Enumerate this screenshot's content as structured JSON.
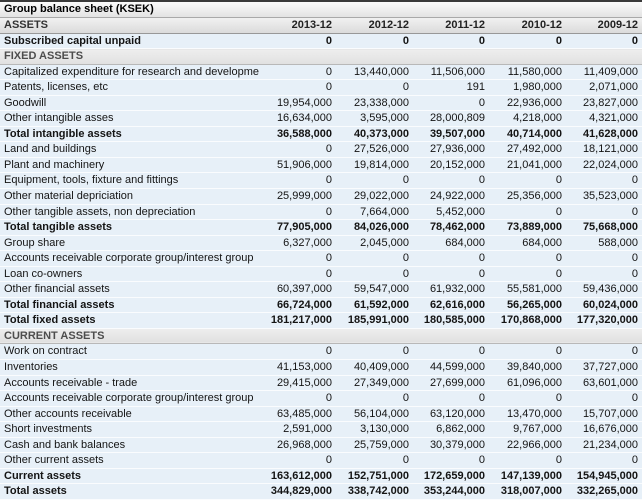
{
  "header": {
    "title": "Group balance sheet (KSEK)",
    "row_label_column": "ASSETS",
    "year_columns": [
      "2013-12",
      "2012-12",
      "2011-12",
      "2010-12",
      "2009-12"
    ]
  },
  "colors": {
    "row_background": "#e7f0f8",
    "section_background": "#e6e6e6",
    "header_background": "#ececec",
    "top_border": "#3a3a3a",
    "text": "#141414"
  },
  "rows": [
    {
      "label": "Subscribed capital unpaid",
      "style": "bold",
      "values": [
        "0",
        "0",
        "0",
        "0",
        "0"
      ]
    },
    {
      "label": "FIXED ASSETS",
      "style": "section",
      "values": []
    },
    {
      "label": "Capitalized expenditure for research and development",
      "style": "normal",
      "values": [
        "0",
        "13,440,000",
        "11,506,000",
        "11,580,000",
        "11,409,000"
      ]
    },
    {
      "label": "Patents, licenses, etc",
      "style": "normal",
      "values": [
        "0",
        "0",
        "191",
        "1,980,000",
        "2,071,000"
      ]
    },
    {
      "label": "Goodwill",
      "style": "normal",
      "values": [
        "19,954,000",
        "23,338,000",
        "0",
        "22,936,000",
        "23,827,000"
      ]
    },
    {
      "label": "Other intangible asses",
      "style": "normal",
      "values": [
        "16,634,000",
        "3,595,000",
        "28,000,809",
        "4,218,000",
        "4,321,000"
      ]
    },
    {
      "label": "Total intangible assets",
      "style": "bold",
      "values": [
        "36,588,000",
        "40,373,000",
        "39,507,000",
        "40,714,000",
        "41,628,000"
      ]
    },
    {
      "label": "Land and buildings",
      "style": "normal",
      "values": [
        "0",
        "27,526,000",
        "27,936,000",
        "27,492,000",
        "18,121,000"
      ]
    },
    {
      "label": "Plant and machinery",
      "style": "normal",
      "values": [
        "51,906,000",
        "19,814,000",
        "20,152,000",
        "21,041,000",
        "22,024,000"
      ]
    },
    {
      "label": "Equipment, tools, fixture and fittings",
      "style": "normal",
      "values": [
        "0",
        "0",
        "0",
        "0",
        "0"
      ]
    },
    {
      "label": "Other material depriciation",
      "style": "normal",
      "values": [
        "25,999,000",
        "29,022,000",
        "24,922,000",
        "25,356,000",
        "35,523,000"
      ]
    },
    {
      "label": "Other tangible assets, non depreciation",
      "style": "normal",
      "values": [
        "0",
        "7,664,000",
        "5,452,000",
        "0",
        "0"
      ]
    },
    {
      "label": "Total tangible assets",
      "style": "bold",
      "values": [
        "77,905,000",
        "84,026,000",
        "78,462,000",
        "73,889,000",
        "75,668,000"
      ]
    },
    {
      "label": "Group share",
      "style": "normal",
      "values": [
        "6,327,000",
        "2,045,000",
        "684,000",
        "684,000",
        "588,000"
      ]
    },
    {
      "label": "Accounts receivable corporate group/interest group",
      "style": "normal",
      "values": [
        "0",
        "0",
        "0",
        "0",
        "0"
      ]
    },
    {
      "label": "Loan co-owners",
      "style": "normal",
      "values": [
        "0",
        "0",
        "0",
        "0",
        "0"
      ]
    },
    {
      "label": "Other financial assets",
      "style": "normal",
      "values": [
        "60,397,000",
        "59,547,000",
        "61,932,000",
        "55,581,000",
        "59,436,000"
      ]
    },
    {
      "label": "Total financial assets",
      "style": "bold",
      "values": [
        "66,724,000",
        "61,592,000",
        "62,616,000",
        "56,265,000",
        "60,024,000"
      ]
    },
    {
      "label": "Total fixed assets",
      "style": "bold",
      "values": [
        "181,217,000",
        "185,991,000",
        "180,585,000",
        "170,868,000",
        "177,320,000"
      ]
    },
    {
      "label": "CURRENT ASSETS",
      "style": "section",
      "values": []
    },
    {
      "label": "Work on contract",
      "style": "normal",
      "values": [
        "0",
        "0",
        "0",
        "0",
        "0"
      ]
    },
    {
      "label": "Inventories",
      "style": "normal",
      "values": [
        "41,153,000",
        "40,409,000",
        "44,599,000",
        "39,840,000",
        "37,727,000"
      ]
    },
    {
      "label": "Accounts receivable - trade",
      "style": "normal",
      "values": [
        "29,415,000",
        "27,349,000",
        "27,699,000",
        "61,096,000",
        "63,601,000"
      ]
    },
    {
      "label": "Accounts receivable corporate group/interest group",
      "style": "normal",
      "values": [
        "0",
        "0",
        "0",
        "0",
        "0"
      ]
    },
    {
      "label": "Other accounts receivable",
      "style": "normal",
      "values": [
        "63,485,000",
        "56,104,000",
        "63,120,000",
        "13,470,000",
        "15,707,000"
      ]
    },
    {
      "label": "Short investments",
      "style": "normal",
      "values": [
        "2,591,000",
        "3,130,000",
        "6,862,000",
        "9,767,000",
        "16,676,000"
      ]
    },
    {
      "label": "Cash and bank balances",
      "style": "normal",
      "values": [
        "26,968,000",
        "25,759,000",
        "30,379,000",
        "22,966,000",
        "21,234,000"
      ]
    },
    {
      "label": "Other current assets",
      "style": "normal",
      "values": [
        "0",
        "0",
        "0",
        "0",
        "0"
      ]
    },
    {
      "label": "Current assets",
      "style": "bold",
      "values": [
        "163,612,000",
        "152,751,000",
        "172,659,000",
        "147,139,000",
        "154,945,000"
      ]
    },
    {
      "label": "Total assets",
      "style": "bold",
      "values": [
        "344,829,000",
        "338,742,000",
        "353,244,000",
        "318,007,000",
        "332,265,000"
      ]
    }
  ]
}
